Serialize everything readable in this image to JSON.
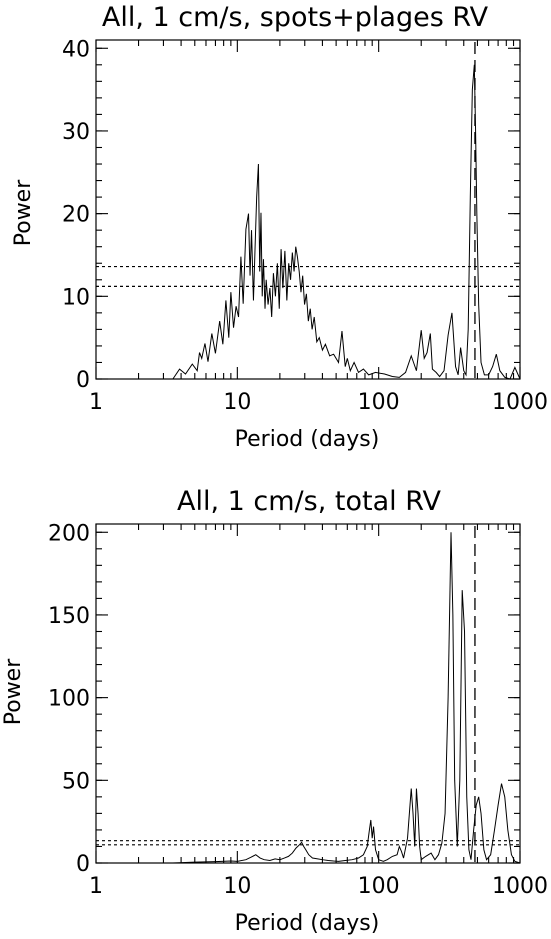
{
  "chart_data": [
    {
      "type": "line",
      "title": "All, 1 cm/s, spots+plages RV",
      "xlabel": "Period (days)",
      "ylabel": "Power",
      "xscale": "log",
      "xlim": [
        1,
        1000
      ],
      "ylim": [
        0,
        41
      ],
      "xticks": [
        1,
        10,
        100,
        1000
      ],
      "xtick_labels": [
        "1",
        "10",
        "100",
        "1000"
      ],
      "yticks": [
        0,
        10,
        20,
        30,
        40
      ],
      "ytick_labels": [
        "0",
        "10",
        "20",
        "30",
        "40"
      ],
      "threshold_levels": [
        11.2,
        13.6
      ],
      "marker_period": 480,
      "series": [
        {
          "x": [
            3.5,
            3.9,
            4.3,
            4.8,
            5.2,
            5.4,
            5.6,
            5.9,
            6.2,
            6.6,
            7.0,
            7.5,
            7.9,
            8.3,
            8.7,
            9.0,
            9.4,
            9.8,
            10.2,
            10.6,
            11.0,
            11.5,
            12.0,
            12.3,
            12.6,
            13.0,
            13.3,
            13.7,
            14.1,
            14.4,
            14.7,
            15.0,
            15.3,
            15.7,
            16.0,
            16.5,
            17.0,
            17.5,
            18.0,
            18.6,
            19.2,
            19.8,
            20.4,
            21.0,
            21.7,
            22.4,
            23.1,
            23.8,
            24.5,
            25.2,
            25.9,
            26.6,
            27.4,
            28.2,
            29.0,
            29.9,
            30.8,
            31.8,
            32.8,
            33.8,
            35.0,
            36.5,
            38.0,
            40.0,
            42.0,
            45.0,
            48.0,
            52.0,
            55.0,
            58.0,
            60.0,
            63.0,
            67.0,
            72.0,
            78.0,
            85.0,
            95.0,
            110.0,
            125.0,
            140.0,
            155.0,
            170.0,
            185.0,
            200.0,
            210.0,
            220.0,
            232.0,
            240.0,
            255.0,
            270.0,
            290.0,
            310.0,
            330.0,
            350.0,
            365.0,
            380.0,
            400.0,
            415.0,
            430.0,
            445.0,
            460.0,
            475.0,
            485.0,
            495.0,
            510.0,
            530.0,
            560.0,
            600.0,
            640.0,
            680.0,
            720.0,
            780.0,
            850.0,
            920.0,
            1000.0
          ],
          "y": [
            0,
            1.2,
            0.6,
            1.8,
            1.0,
            3.2,
            2.5,
            4.3,
            2.1,
            5.5,
            3.1,
            7.0,
            4.2,
            9.5,
            5.0,
            10.5,
            6.2,
            8.8,
            7.5,
            14.8,
            9.1,
            18.1,
            20.0,
            12.5,
            18.0,
            9.5,
            15.0,
            22.0,
            26.0,
            13.0,
            20.1,
            10.0,
            14.5,
            8.5,
            12.0,
            9.0,
            11.0,
            7.5,
            12.8,
            10.0,
            14.0,
            8.5,
            15.7,
            11.0,
            15.5,
            9.5,
            14.0,
            12.0,
            15.3,
            13.0,
            16.0,
            14.8,
            13.0,
            10.5,
            12.5,
            9.0,
            10.3,
            7.0,
            8.5,
            6.0,
            7.5,
            4.5,
            5.0,
            3.5,
            4.2,
            2.8,
            3.0,
            2.0,
            5.8,
            1.5,
            2.5,
            1.0,
            2.0,
            0.8,
            1.2,
            0.5,
            0.8,
            0.6,
            0.3,
            0.2,
            0.8,
            2.8,
            1.0,
            5.9,
            2.5,
            3.2,
            5.5,
            1.2,
            0.8,
            0.3,
            1.0,
            5.3,
            8.0,
            1.5,
            0.5,
            3.8,
            1.0,
            0.5,
            6.0,
            22.0,
            35.0,
            38.0,
            30.0,
            20.0,
            9.0,
            2.0,
            0.5,
            0.5,
            1.5,
            3.0,
            1.0,
            0.2,
            0.0,
            1.4,
            0.0
          ]
        }
      ]
    },
    {
      "type": "line",
      "title": "All, 1 cm/s, total RV",
      "xlabel": "Period (days)",
      "ylabel": "Power",
      "xscale": "log",
      "xlim": [
        1,
        1000
      ],
      "ylim": [
        0,
        205
      ],
      "xticks": [
        1,
        10,
        100,
        1000
      ],
      "xtick_labels": [
        "1",
        "10",
        "100",
        "1000"
      ],
      "yticks": [
        0,
        50,
        100,
        150,
        200
      ],
      "ytick_labels": [
        "0",
        "50",
        "100",
        "150",
        "200"
      ],
      "threshold_levels": [
        11.0,
        13.5
      ],
      "marker_period": 480,
      "series": [
        {
          "x": [
            3.5,
            5.0,
            7.0,
            9.0,
            10.0,
            11.5,
            12.5,
            13.5,
            14.5,
            15.5,
            17.0,
            18.5,
            20.0,
            21.5,
            23.0,
            24.5,
            26.0,
            27.5,
            28.5,
            29.5,
            30.5,
            32.0,
            34.0,
            37.0,
            40.0,
            44.0,
            48.0,
            52.0,
            58.0,
            65.0,
            72.0,
            78.0,
            83.0,
            86.0,
            88.0,
            90.0,
            92.0,
            95.0,
            100.0,
            108.0,
            115.0,
            125.0,
            135.0,
            140.0,
            145.0,
            150.0,
            160.0,
            170.0,
            175.0,
            180.0,
            185.0,
            190.0,
            195.0,
            200.0,
            215.0,
            235.0,
            250.0,
            265.0,
            280.0,
            295.0,
            310.0,
            325.0,
            335.0,
            345.0,
            360.0,
            375.0,
            390.0,
            405.0,
            420.0,
            435.0,
            450.0,
            470.0,
            490.0,
            510.0,
            530.0,
            555.0,
            580.0,
            620.0,
            660.0,
            700.0,
            740.0,
            780.0,
            820.0,
            870.0,
            920.0,
            1000.0
          ],
          "y": [
            0,
            0.5,
            0.8,
            1.2,
            1.0,
            2.0,
            3.5,
            5.0,
            3.0,
            2.0,
            1.5,
            2.5,
            2.0,
            3.0,
            4.0,
            6.0,
            9.0,
            11.0,
            12.5,
            10.0,
            8.0,
            5.0,
            3.0,
            2.5,
            2.0,
            1.5,
            1.2,
            1.0,
            1.5,
            2.0,
            3.0,
            5.0,
            10.0,
            20.0,
            26.0,
            15.0,
            22.0,
            8.0,
            2.0,
            1.0,
            2.0,
            4.0,
            5.0,
            10.0,
            7.0,
            3.0,
            15.0,
            45.0,
            30.0,
            10.0,
            45.0,
            30.0,
            10.0,
            2.0,
            4.0,
            6.0,
            2.0,
            5.0,
            12.0,
            30.0,
            100.0,
            200.0,
            150.0,
            50.0,
            10.0,
            50.0,
            165.0,
            140.0,
            40.0,
            8.0,
            2.0,
            20.0,
            35.0,
            40.0,
            30.0,
            8.0,
            2.0,
            5.0,
            20.0,
            35.0,
            48.0,
            40.0,
            20.0,
            5.0,
            1.0,
            0.0
          ]
        }
      ]
    }
  ]
}
